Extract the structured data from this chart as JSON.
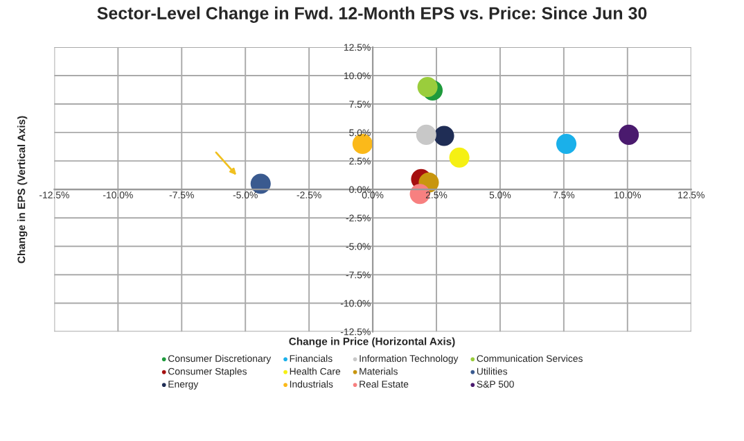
{
  "chart_data": {
    "type": "scatter",
    "title": "Sector-Level Change in Fwd. 12-Month EPS vs. Price: Since Jun 30",
    "xlabel": "Change in Price (Horizontal Axis)",
    "ylabel": "Change in EPS (Vertical Axis)",
    "xlim": [
      -12.5,
      12.5
    ],
    "ylim": [
      -12.5,
      12.5
    ],
    "xticks": [
      {
        "value": -12.5,
        "label": "-12.5%"
      },
      {
        "value": -10,
        "label": "-10.0%"
      },
      {
        "value": -7.5,
        "label": "-7.5%"
      },
      {
        "value": -5,
        "label": "-5.0%"
      },
      {
        "value": -2.5,
        "label": "-2.5%"
      },
      {
        "value": 0,
        "label": "0.0%"
      },
      {
        "value": 2.5,
        "label": "2.5%"
      },
      {
        "value": 5,
        "label": "5.0%"
      },
      {
        "value": 7.5,
        "label": "7.5%"
      },
      {
        "value": 10,
        "label": "10.0%"
      },
      {
        "value": 12.5,
        "label": "12.5%"
      }
    ],
    "yticks": [
      {
        "value": -12.5,
        "label": "-12.5%"
      },
      {
        "value": -10,
        "label": "-10.0%"
      },
      {
        "value": -7.5,
        "label": "-7.5%"
      },
      {
        "value": -5,
        "label": "-5.0%"
      },
      {
        "value": -2.5,
        "label": "-2.5%"
      },
      {
        "value": 0,
        "label": "0.0%"
      },
      {
        "value": 2.5,
        "label": "2.5%"
      },
      {
        "value": 5,
        "label": "5.0%"
      },
      {
        "value": 7.5,
        "label": "7.5%"
      },
      {
        "value": 10,
        "label": "10.0%"
      },
      {
        "value": 12.5,
        "label": "12.5%"
      }
    ],
    "grid": true,
    "legend": "bottom",
    "marker": "circle",
    "series": [
      {
        "name": "Consumer Discretionary",
        "color": "#1e9a3c",
        "x": [
          2.35
        ],
        "values": [
          8.7
        ]
      },
      {
        "name": "Consumer Staples",
        "color": "#a50f0f",
        "x": [
          1.9
        ],
        "values": [
          0.9
        ]
      },
      {
        "name": "Energy",
        "color": "#1f2d55",
        "x": [
          2.8
        ],
        "values": [
          4.7
        ]
      },
      {
        "name": "Financials",
        "color": "#1ab0ea",
        "x": [
          7.6
        ],
        "values": [
          4.0
        ]
      },
      {
        "name": "Health Care",
        "color": "#f5f014",
        "x": [
          3.4
        ],
        "values": [
          2.8
        ]
      },
      {
        "name": "Industrials",
        "color": "#fbb91a",
        "x": [
          -0.4
        ],
        "values": [
          4.0
        ]
      },
      {
        "name": "Information Technology",
        "color": "#c8c8c8",
        "x": [
          2.1
        ],
        "values": [
          4.8
        ]
      },
      {
        "name": "Materials",
        "color": "#c8960f",
        "x": [
          2.2
        ],
        "values": [
          0.6
        ]
      },
      {
        "name": "Real Estate",
        "color": "#f78080",
        "x": [
          1.85
        ],
        "values": [
          -0.4
        ]
      },
      {
        "name": "Communication Services",
        "color": "#9acd3c",
        "x": [
          2.15
        ],
        "values": [
          9.0
        ]
      },
      {
        "name": "Utilities",
        "color": "#3a5a8f",
        "x": [
          -4.4
        ],
        "values": [
          0.5
        ]
      },
      {
        "name": "S&P 500",
        "color": "#4a1a6e",
        "x": [
          10.05
        ],
        "values": [
          4.8
        ]
      }
    ]
  }
}
